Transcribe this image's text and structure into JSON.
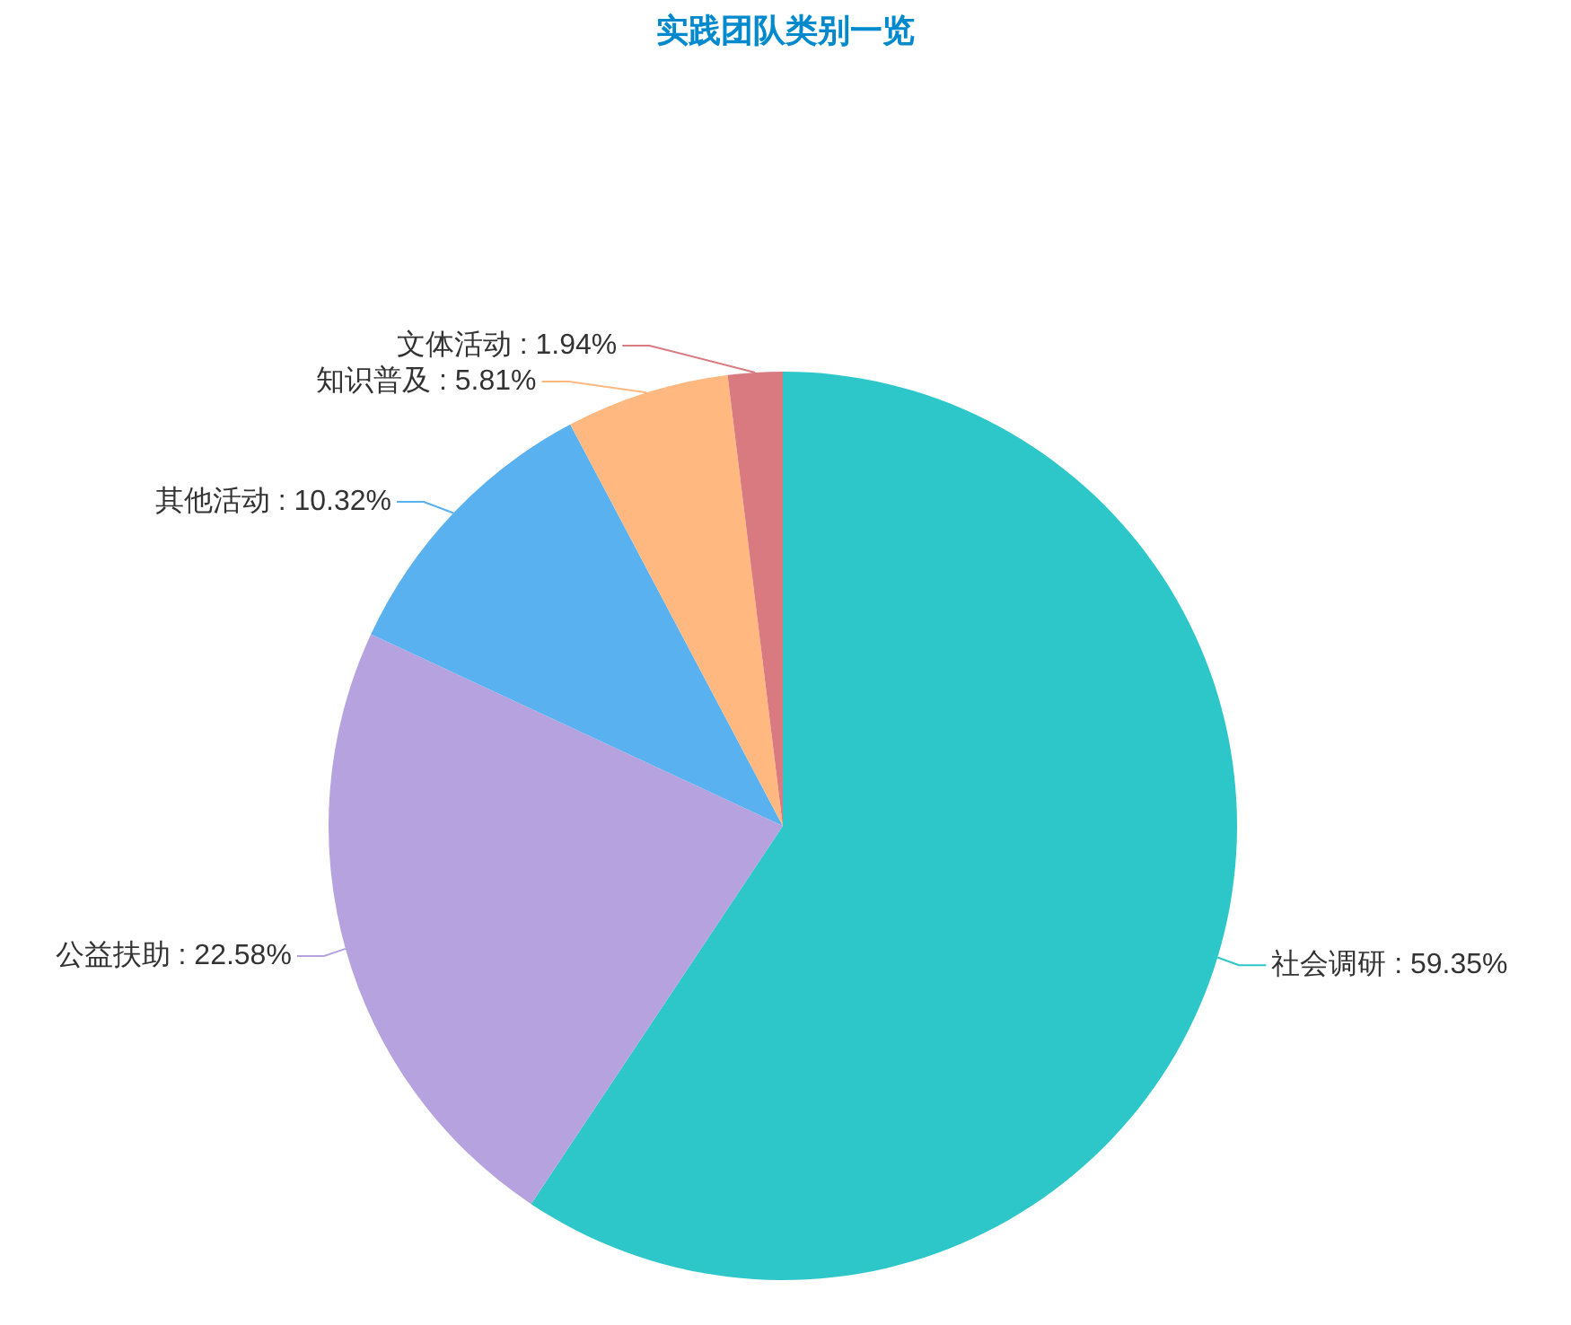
{
  "chart_data": {
    "type": "pie",
    "title": "实践团队类别一览",
    "categories": [
      "社会调研",
      "公益扶助",
      "其他活动",
      "知识普及",
      "文体活动"
    ],
    "values": [
      59.35,
      22.58,
      10.32,
      5.81,
      1.94
    ],
    "colors": [
      "#2ec7c9",
      "#b6a2de",
      "#5ab1ef",
      "#ffb980",
      "#d87a80"
    ],
    "value_labels": [
      ": 59.35%",
      ": 22.58%",
      ": 10.32%",
      ": 5.81%",
      ": 1.94%"
    ]
  }
}
